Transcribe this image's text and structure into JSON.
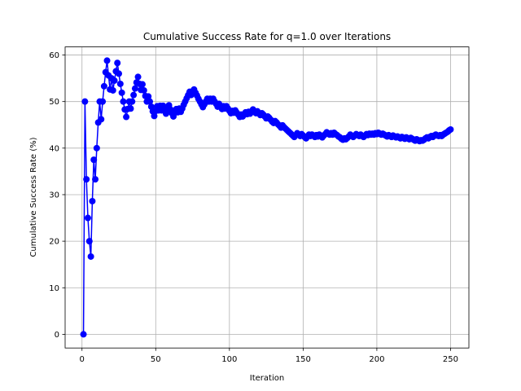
{
  "chart_data": {
    "type": "line",
    "title": "Cumulative Success Rate for q=1.0 over Iterations",
    "x_label": "Iteration",
    "y_label": "Cumulative Success Rate (%)",
    "x": [
      1,
      2,
      3,
      4,
      5,
      6,
      7,
      8,
      9,
      10,
      11,
      12,
      13,
      14,
      15,
      16,
      17,
      18,
      19,
      20,
      21,
      22,
      23,
      24,
      25,
      26,
      27,
      28,
      29,
      30,
      31,
      32,
      33,
      34,
      35,
      36,
      37,
      38,
      39,
      40,
      41,
      42,
      43,
      44,
      45,
      46,
      47,
      48,
      49,
      50,
      51,
      52,
      53,
      54,
      55,
      56,
      57,
      58,
      59,
      60,
      61,
      62,
      63,
      64,
      65,
      66,
      67,
      68,
      69,
      70,
      71,
      72,
      73,
      74,
      75,
      76,
      77,
      78,
      79,
      80,
      81,
      82,
      83,
      84,
      85,
      86,
      87,
      88,
      89,
      90,
      91,
      92,
      93,
      94,
      95,
      96,
      97,
      98,
      99,
      100,
      101,
      102,
      103,
      104,
      105,
      106,
      107,
      108,
      109,
      110,
      111,
      112,
      113,
      114,
      115,
      116,
      117,
      118,
      119,
      120,
      121,
      122,
      123,
      124,
      125,
      126,
      127,
      128,
      129,
      130,
      131,
      132,
      133,
      134,
      135,
      136,
      137,
      138,
      139,
      140,
      141,
      142,
      143,
      144,
      145,
      146,
      147,
      148,
      149,
      150,
      151,
      152,
      153,
      154,
      155,
      156,
      157,
      158,
      159,
      160,
      161,
      162,
      163,
      164,
      165,
      166,
      167,
      168,
      169,
      170,
      171,
      172,
      173,
      174,
      175,
      176,
      177,
      178,
      179,
      180,
      181,
      182,
      183,
      184,
      185,
      186,
      187,
      188,
      189,
      190,
      191,
      192,
      193,
      194,
      195,
      196,
      197,
      198,
      199,
      200,
      201,
      202,
      203,
      204,
      205,
      206,
      207,
      208,
      209,
      210,
      211,
      212,
      213,
      214,
      215,
      216,
      217,
      218,
      219,
      220,
      221,
      222,
      223,
      224,
      225,
      226,
      227,
      228,
      229,
      230,
      231,
      232,
      233,
      234,
      235,
      236,
      237,
      238,
      239,
      240,
      241,
      242,
      243,
      244,
      245,
      246,
      247,
      248,
      249,
      250
    ],
    "series": [
      {
        "color": "#0000ff",
        "values": [
          0,
          50,
          33.3,
          25,
          20,
          16.7,
          28.6,
          37.5,
          33.3,
          40,
          45.5,
          50,
          46.2,
          50,
          53.3,
          56.3,
          58.8,
          55.6,
          52.6,
          55,
          52.4,
          54.5,
          56.5,
          58.3,
          56,
          53.8,
          51.9,
          50,
          48.3,
          46.7,
          48.4,
          50,
          48.5,
          50,
          51.4,
          52.8,
          54.1,
          55.3,
          53.8,
          52.5,
          53.7,
          52.4,
          51.2,
          50,
          51.1,
          50,
          48.9,
          47.9,
          46.9,
          48,
          49,
          48.1,
          49.1,
          48.1,
          49.1,
          48.2,
          47.4,
          48.3,
          49.2,
          48.3,
          47.5,
          46.8,
          47.6,
          48.4,
          47.7,
          48.5,
          47.8,
          48.5,
          49.3,
          50,
          50.7,
          51.4,
          52.1,
          51.4,
          52,
          52.6,
          51.9,
          51.3,
          50.6,
          50,
          49.4,
          48.8,
          49.4,
          50,
          50.6,
          50,
          50.6,
          50,
          50.6,
          50,
          49.5,
          48.9,
          49.5,
          48.9,
          48.4,
          49,
          48.5,
          49,
          48.5,
          48,
          47.5,
          48,
          47.6,
          48.1,
          47.6,
          47.2,
          46.7,
          47.2,
          46.8,
          47.3,
          47.7,
          47.3,
          47.8,
          47.4,
          47.8,
          48.3,
          47.9,
          47.5,
          47.9,
          47.5,
          47.1,
          47.5,
          47.2,
          46.8,
          46.4,
          46.8,
          46.5,
          46.1,
          45.7,
          45.4,
          45.8,
          45.5,
          45.1,
          44.8,
          44.4,
          44.9,
          44.5,
          44.2,
          43.9,
          43.6,
          43.3,
          43,
          42.7,
          42.4,
          42.8,
          43.2,
          42.9,
          42.6,
          43,
          42.7,
          42.4,
          42.1,
          42.5,
          42.9,
          42.6,
          42.9,
          42.7,
          42.4,
          42.8,
          42.5,
          42.9,
          42.6,
          42.3,
          42.7,
          43,
          43.4,
          43.1,
          42.9,
          43.2,
          42.9,
          43.3,
          43,
          42.8,
          42.5,
          42.3,
          42,
          41.8,
          42.1,
          41.9,
          42.2,
          42.5,
          42.9,
          42.6,
          42.4,
          42.7,
          43,
          42.8,
          42.6,
          42.9,
          42.6,
          42.4,
          42.7,
          43,
          42.8,
          43.1,
          42.9,
          43.1,
          42.9,
          43.2,
          43,
          43.3,
          43.1,
          42.9,
          43.1,
          42.9,
          42.7,
          42.5,
          42.8,
          42.6,
          42.4,
          42.7,
          42.5,
          42.3,
          42.5,
          42.3,
          42.1,
          42.4,
          42.2,
          42,
          42.3,
          42.1,
          41.9,
          42.2,
          42,
          41.8,
          41.6,
          41.9,
          41.7,
          41.5,
          41.7,
          41.6,
          41.8,
          42.1,
          42.3,
          42.1,
          42.4,
          42.6,
          42.4,
          42.7,
          42.9,
          42.7,
          42.6,
          42.8,
          42.6,
          42.9,
          43.1,
          43.3,
          43.5,
          43.8,
          44
        ]
      }
    ],
    "xlim": [
      -11.45,
      262.45
    ],
    "ylim": [
      -2.94,
      61.74
    ],
    "xticks": [
      0,
      50,
      100,
      150,
      200,
      250
    ],
    "yticks": [
      0,
      10,
      20,
      30,
      40,
      50,
      60
    ],
    "grid": true
  }
}
